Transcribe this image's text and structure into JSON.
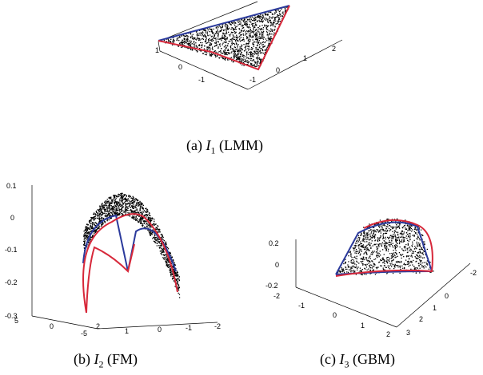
{
  "captions": {
    "a": {
      "label": "(a)",
      "var": "I",
      "sub": "1",
      "model": "(LMM)"
    },
    "b": {
      "label": "(b)",
      "var": "I",
      "sub": "2",
      "model": "(FM)"
    },
    "c": {
      "label": "(c)",
      "var": "I",
      "sub": "3",
      "model": "(GBM)"
    }
  },
  "chart_data": [
    {
      "type": "scatter",
      "panel": "a",
      "kind": "3d-scatter-simplex",
      "ticks_left": [
        "1",
        "0",
        "-1"
      ],
      "ticks_right": [
        "-1",
        "0",
        "1",
        "2"
      ],
      "colors": {
        "points": "#000000",
        "edge_blue": "#2b3a9c",
        "edge_red": "#d7283a"
      }
    },
    {
      "type": "scatter",
      "panel": "b",
      "kind": "3d-scatter-curved",
      "ticks_z": [
        "0.1",
        "0",
        "-0.1",
        "-0.2",
        "-0.3"
      ],
      "ticks_x": [
        "5",
        "0",
        "-5"
      ],
      "ticks_y": [
        "2",
        "1",
        "0",
        "-1",
        "-2"
      ],
      "colors": {
        "points": "#000000",
        "edge_blue": "#2b3a9c",
        "edge_red": "#d7283a"
      }
    },
    {
      "type": "scatter",
      "panel": "c",
      "kind": "3d-scatter-curved",
      "ticks_z": [
        "0.2",
        "0",
        "-0.2"
      ],
      "ticks_x": [
        "-2",
        "-1",
        "0",
        "1",
        "2"
      ],
      "ticks_y": [
        "-2",
        "0",
        "1",
        "2",
        "3"
      ],
      "colors": {
        "points": "#000000",
        "edge_blue": "#2b3a9c",
        "edge_red": "#d7283a"
      }
    }
  ]
}
